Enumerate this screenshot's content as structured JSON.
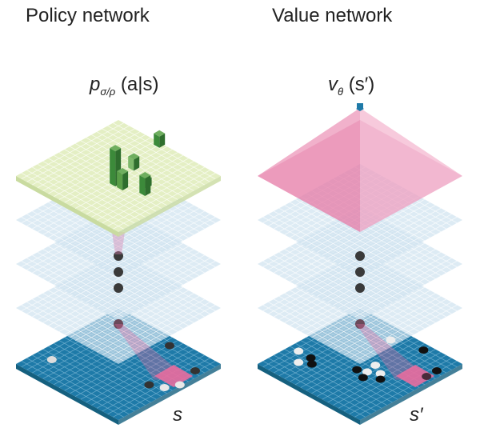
{
  "policy": {
    "title": "Policy network",
    "output_label_main": "p",
    "output_label_sub": "σ/ρ",
    "output_label_arg": " (a|s)",
    "input_label": "s"
  },
  "value": {
    "title": "Value network",
    "output_label_main": "v",
    "output_label_sub": "θ",
    "output_label_arg": " (s′)",
    "input_label": "s′"
  },
  "colors": {
    "policy_output": "#e4efc4",
    "hidden_layer": "#cfe3f0",
    "input_board": "#1e7aa8",
    "value_pyramid": "#e57aa6",
    "policy_bars": "#3c8a3a",
    "dots": "#3a3a3a"
  }
}
